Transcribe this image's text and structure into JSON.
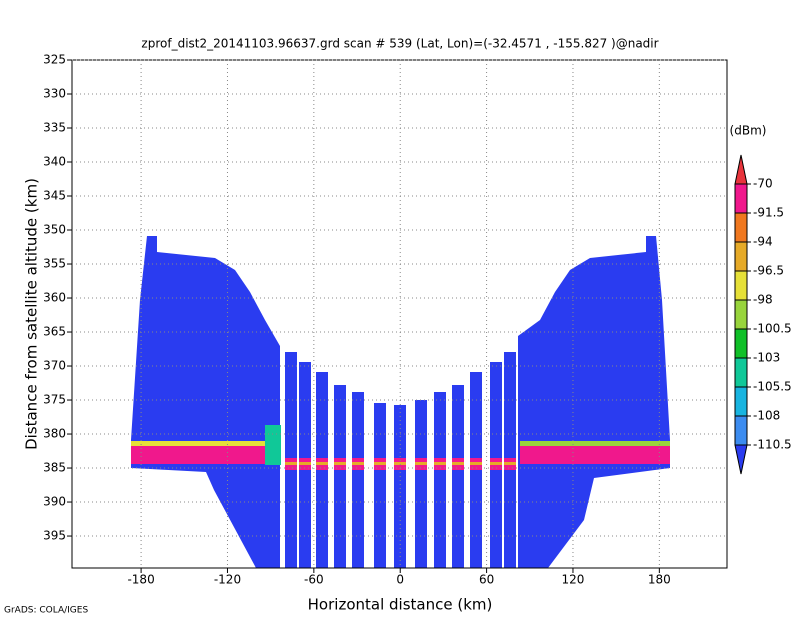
{
  "chart_data": {
    "type": "heatmap",
    "title": "zprof_dist2_20141103.96637.grd  scan # 539  (Lat, Lon)=(-32.4571 , -155.827 )@nadir",
    "xlabel": "Horizontal distance (km)",
    "ylabel": "Distance from satellite altitude (km)",
    "xlim": [
      -228,
      227
    ],
    "ylim": [
      325,
      399.7
    ],
    "y_inverted": true,
    "xticks": [
      -180,
      -120,
      -60,
      0,
      60,
      120,
      180
    ],
    "yticks": [
      325,
      330,
      335,
      340,
      345,
      350,
      355,
      360,
      365,
      370,
      375,
      380,
      385,
      390,
      395
    ],
    "grid": true,
    "colorbar": {
      "label": "(dBm)",
      "levels": [
        -70,
        -91.5,
        -94,
        -96.5,
        -98,
        -100.5,
        -103,
        -105.5,
        -108,
        -110.5
      ],
      "colors": [
        "#e8343c",
        "#f0188c",
        "#f07820",
        "#e6aa28",
        "#e6e038",
        "#98d43c",
        "#10c028",
        "#10c898",
        "#18b4e0",
        "#3c8cf0",
        "#2a3cf0"
      ]
    },
    "footer": "GrADS: COLA/IGES"
  }
}
